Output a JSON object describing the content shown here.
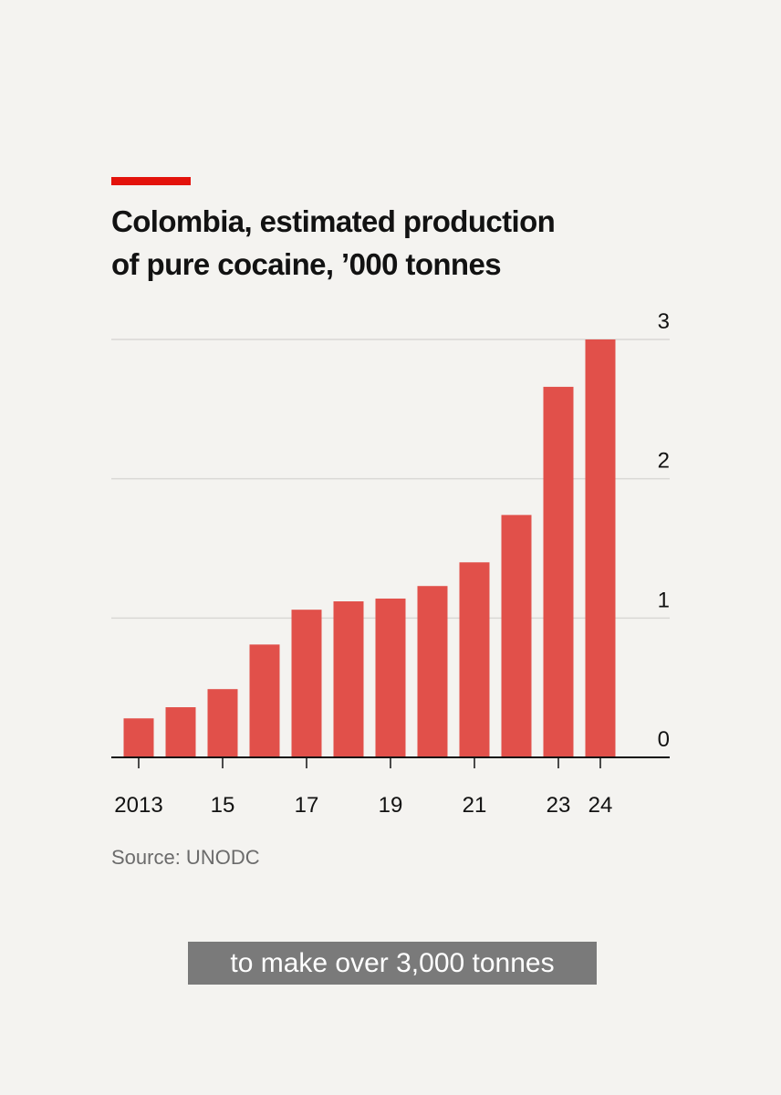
{
  "header": {
    "title_line1": "Colombia, estimated production",
    "title_line2": "of pure cocaine, ’000 tonnes",
    "accent_color": "#e3120b"
  },
  "chart_data": {
    "type": "bar",
    "categories": [
      "2013",
      "2014",
      "2015",
      "2016",
      "2017",
      "2018",
      "2019",
      "2020",
      "2021",
      "2022",
      "2023",
      "2024"
    ],
    "tick_labels": [
      "2013",
      "",
      "15",
      "",
      "17",
      "",
      "19",
      "",
      "21",
      "",
      "23",
      "24"
    ],
    "values": [
      0.28,
      0.36,
      0.49,
      0.81,
      1.06,
      1.12,
      1.14,
      1.23,
      1.4,
      1.74,
      2.66,
      3.0
    ],
    "ylim": [
      0,
      3
    ],
    "yticks": [
      "0",
      "1",
      "2",
      "3"
    ],
    "ytick_values": [
      0,
      1,
      2,
      3
    ],
    "yaxis_position": "right",
    "grid": true,
    "bar_color": "#e1504a",
    "title": "Colombia, estimated production of pure cocaine, ’000 tonnes"
  },
  "footer": {
    "source": "Source: UNODC"
  },
  "caption": {
    "text": "to make over 3,000 tonnes"
  }
}
